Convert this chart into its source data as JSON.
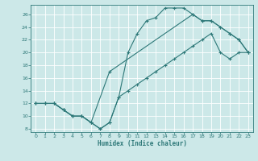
{
  "xlabel": "Humidex (Indice chaleur)",
  "bg_color": "#cce8e8",
  "grid_color": "#ffffff",
  "line_color": "#2d7878",
  "xlim": [
    -0.5,
    23.5
  ],
  "ylim": [
    7.5,
    27.5
  ],
  "xticks": [
    0,
    1,
    2,
    3,
    4,
    5,
    6,
    7,
    8,
    9,
    10,
    11,
    12,
    13,
    14,
    15,
    16,
    17,
    18,
    19,
    20,
    21,
    22,
    23
  ],
  "yticks": [
    8,
    10,
    12,
    14,
    16,
    18,
    20,
    22,
    24,
    26
  ],
  "curve1_x": [
    0,
    1,
    2,
    3,
    4,
    5,
    6,
    7,
    8,
    9,
    10,
    11,
    12,
    13,
    14,
    15,
    16,
    17,
    18,
    19,
    20,
    21,
    22,
    23
  ],
  "curve1_y": [
    12,
    12,
    12,
    11,
    10,
    10,
    9,
    8,
    9,
    13,
    20,
    23,
    25,
    25.5,
    27,
    27,
    27,
    26,
    25,
    25,
    24,
    23,
    22,
    20
  ],
  "curve2_x": [
    0,
    1,
    2,
    3,
    4,
    5,
    6,
    7,
    8,
    9,
    10,
    11,
    12,
    13,
    14,
    15,
    16,
    17,
    18,
    19,
    20,
    21,
    22,
    23
  ],
  "curve2_y": [
    12,
    12,
    12,
    11,
    10,
    10,
    9,
    8,
    9,
    13,
    14,
    15,
    16,
    17,
    18,
    19,
    20,
    21,
    22,
    23,
    20,
    19,
    20,
    20
  ],
  "curve3_x": [
    0,
    1,
    2,
    3,
    4,
    5,
    6,
    8,
    17,
    18,
    19,
    20,
    21,
    22,
    23
  ],
  "curve3_y": [
    12,
    12,
    12,
    11,
    10,
    10,
    9,
    17,
    26,
    25,
    25,
    24,
    23,
    22,
    20
  ]
}
